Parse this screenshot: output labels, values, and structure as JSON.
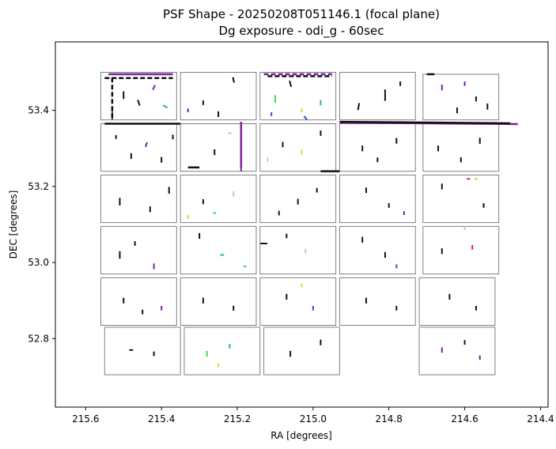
{
  "chart_data": {
    "type": "scatter",
    "title": "PSF Shape - 20250208T051146.1 (focal plane)",
    "subtitle": "Dg exposure - odi_g - 60sec",
    "xlabel": "RA [degrees]",
    "ylabel": "DEC [degrees]",
    "xlim": [
      215.68,
      214.38
    ],
    "ylim": [
      52.62,
      53.58
    ],
    "x_inverted": true,
    "grid": false,
    "x_ticks": [
      215.6,
      215.4,
      215.2,
      215.0,
      214.8,
      214.6,
      214.4
    ],
    "x_tick_labels": [
      "215.6",
      "215.4",
      "215.2",
      "215.0",
      "214.8",
      "214.6",
      "214.4"
    ],
    "y_ticks": [
      52.8,
      53.0,
      53.2,
      53.4
    ],
    "y_tick_labels": [
      "52.8",
      "53.0",
      "53.2",
      "53.4"
    ],
    "colors": {
      "ccd_outline": "#808080",
      "psf_default": "#111111",
      "psf_purple": "#7b1fa2",
      "psf_teal": "#1fb0b0",
      "psf_green": "#33dd55",
      "psf_blue": "#2255cc",
      "psf_yellow": "#e8d020",
      "psf_gray": "#c8c8c8",
      "psf_red": "#dd2222"
    },
    "ccds": [
      {
        "ra_left": 215.56,
        "ra_right": 215.36,
        "dec_bottom": 53.375,
        "dec_top": 53.5
      },
      {
        "ra_left": 215.35,
        "ra_right": 215.15,
        "dec_bottom": 53.375,
        "dec_top": 53.5
      },
      {
        "ra_left": 215.14,
        "ra_right": 214.94,
        "dec_bottom": 53.375,
        "dec_top": 53.5
      },
      {
        "ra_left": 214.93,
        "ra_right": 214.73,
        "dec_bottom": 53.375,
        "dec_top": 53.5
      },
      {
        "ra_left": 214.71,
        "ra_right": 214.51,
        "dec_bottom": 53.375,
        "dec_top": 53.495
      },
      {
        "ra_left": 215.56,
        "ra_right": 215.36,
        "dec_bottom": 53.24,
        "dec_top": 53.365
      },
      {
        "ra_left": 215.35,
        "ra_right": 215.15,
        "dec_bottom": 53.24,
        "dec_top": 53.365
      },
      {
        "ra_left": 215.14,
        "ra_right": 214.94,
        "dec_bottom": 53.24,
        "dec_top": 53.365
      },
      {
        "ra_left": 214.93,
        "ra_right": 214.73,
        "dec_bottom": 53.24,
        "dec_top": 53.365
      },
      {
        "ra_left": 214.71,
        "ra_right": 214.51,
        "dec_bottom": 53.24,
        "dec_top": 53.365
      },
      {
        "ra_left": 215.56,
        "ra_right": 215.36,
        "dec_bottom": 53.105,
        "dec_top": 53.23
      },
      {
        "ra_left": 215.35,
        "ra_right": 215.15,
        "dec_bottom": 53.105,
        "dec_top": 53.23
      },
      {
        "ra_left": 215.14,
        "ra_right": 214.94,
        "dec_bottom": 53.105,
        "dec_top": 53.23
      },
      {
        "ra_left": 214.93,
        "ra_right": 214.73,
        "dec_bottom": 53.105,
        "dec_top": 53.23
      },
      {
        "ra_left": 214.71,
        "ra_right": 214.51,
        "dec_bottom": 53.105,
        "dec_top": 53.23
      },
      {
        "ra_left": 215.56,
        "ra_right": 215.36,
        "dec_bottom": 52.97,
        "dec_top": 53.095
      },
      {
        "ra_left": 215.35,
        "ra_right": 215.15,
        "dec_bottom": 52.97,
        "dec_top": 53.095
      },
      {
        "ra_left": 215.14,
        "ra_right": 214.94,
        "dec_bottom": 52.97,
        "dec_top": 53.095
      },
      {
        "ra_left": 214.93,
        "ra_right": 214.73,
        "dec_bottom": 52.97,
        "dec_top": 53.095
      },
      {
        "ra_left": 214.71,
        "ra_right": 214.51,
        "dec_bottom": 52.97,
        "dec_top": 53.095
      },
      {
        "ra_left": 215.56,
        "ra_right": 215.36,
        "dec_bottom": 52.835,
        "dec_top": 52.96
      },
      {
        "ra_left": 215.35,
        "ra_right": 215.15,
        "dec_bottom": 52.835,
        "dec_top": 52.96
      },
      {
        "ra_left": 215.14,
        "ra_right": 214.94,
        "dec_bottom": 52.835,
        "dec_top": 52.96
      },
      {
        "ra_left": 214.93,
        "ra_right": 214.73,
        "dec_bottom": 52.835,
        "dec_top": 52.96
      },
      {
        "ra_left": 214.72,
        "ra_right": 214.52,
        "dec_bottom": 52.835,
        "dec_top": 52.96
      },
      {
        "ra_left": 215.55,
        "ra_right": 215.35,
        "dec_bottom": 52.705,
        "dec_top": 52.83
      },
      {
        "ra_left": 215.34,
        "ra_right": 215.14,
        "dec_bottom": 52.705,
        "dec_top": 52.83
      },
      {
        "ra_left": 215.13,
        "ra_right": 214.93,
        "dec_bottom": 52.705,
        "dec_top": 52.83
      },
      {
        "ra_left": 214.72,
        "ra_right": 214.52,
        "dec_bottom": 52.705,
        "dec_top": 52.83
      }
    ],
    "psf_sticks": [
      {
        "ra": 215.5,
        "dec": 53.44,
        "dra": 0.0,
        "ddec": 0.02,
        "color": "default"
      },
      {
        "ra": 215.46,
        "dec": 53.42,
        "dra": 0.005,
        "ddec": 0.015,
        "color": "default"
      },
      {
        "ra": 215.42,
        "dec": 53.46,
        "dra": -0.006,
        "ddec": 0.012,
        "color": "purple"
      },
      {
        "ra": 215.39,
        "dec": 53.41,
        "dra": 0.012,
        "ddec": 0.006,
        "color": "teal"
      },
      {
        "ra": 215.53,
        "dec": 53.39,
        "dra": 0.0,
        "ddec": 0.03,
        "color": "purple"
      },
      {
        "ra": 215.29,
        "dec": 53.42,
        "dra": 0.0,
        "ddec": 0.012,
        "color": "default"
      },
      {
        "ra": 215.25,
        "dec": 53.39,
        "dra": 0.0,
        "ddec": 0.015,
        "color": "default"
      },
      {
        "ra": 215.21,
        "dec": 53.48,
        "dra": 0.003,
        "ddec": 0.014,
        "color": "default"
      },
      {
        "ra": 215.33,
        "dec": 53.4,
        "dra": 0.0,
        "ddec": 0.01,
        "color": "purple"
      },
      {
        "ra": 215.1,
        "dec": 53.43,
        "dra": 0.0,
        "ddec": 0.02,
        "color": "green"
      },
      {
        "ra": 215.06,
        "dec": 53.47,
        "dra": 0.004,
        "ddec": 0.016,
        "color": "default"
      },
      {
        "ra": 215.02,
        "dec": 53.38,
        "dra": 0.008,
        "ddec": 0.01,
        "color": "blue"
      },
      {
        "ra": 214.98,
        "dec": 53.42,
        "dra": 0.0,
        "ddec": 0.014,
        "color": "teal"
      },
      {
        "ra": 215.11,
        "dec": 53.39,
        "dra": 0.0,
        "ddec": 0.01,
        "color": "blue"
      },
      {
        "ra": 215.03,
        "dec": 53.4,
        "dra": 0.0,
        "ddec": 0.01,
        "color": "yellow"
      },
      {
        "ra": 214.88,
        "dec": 53.41,
        "dra": -0.003,
        "ddec": 0.018,
        "color": "default"
      },
      {
        "ra": 214.81,
        "dec": 53.44,
        "dra": 0.0,
        "ddec": 0.03,
        "color": "default"
      },
      {
        "ra": 214.77,
        "dec": 53.47,
        "dra": 0.0,
        "ddec": 0.012,
        "color": "default"
      },
      {
        "ra": 214.66,
        "dec": 53.46,
        "dra": 0.0,
        "ddec": 0.015,
        "color": "purple"
      },
      {
        "ra": 214.62,
        "dec": 53.4,
        "dra": 0.0,
        "ddec": 0.015,
        "color": "default"
      },
      {
        "ra": 214.57,
        "dec": 53.43,
        "dra": 0.0,
        "ddec": 0.013,
        "color": "default"
      },
      {
        "ra": 214.6,
        "dec": 53.47,
        "dra": 0.0,
        "ddec": 0.012,
        "color": "purple"
      },
      {
        "ra": 214.54,
        "dec": 53.41,
        "dra": 0.0,
        "ddec": 0.016,
        "color": "default"
      },
      {
        "ra": 215.48,
        "dec": 53.28,
        "dra": 0.0,
        "ddec": 0.015,
        "color": "default"
      },
      {
        "ra": 215.44,
        "dec": 53.31,
        "dra": -0.004,
        "ddec": 0.012,
        "color": "purple"
      },
      {
        "ra": 215.4,
        "dec": 53.27,
        "dra": 0.0,
        "ddec": 0.015,
        "color": "default"
      },
      {
        "ra": 215.52,
        "dec": 53.33,
        "dra": 0.0,
        "ddec": 0.01,
        "color": "default"
      },
      {
        "ra": 215.37,
        "dec": 53.33,
        "dra": 0.0,
        "ddec": 0.012,
        "color": "default"
      },
      {
        "ra": 215.26,
        "dec": 53.29,
        "dra": 0.0,
        "ddec": 0.015,
        "color": "default"
      },
      {
        "ra": 215.19,
        "dec": 53.28,
        "dra": 0.0,
        "ddec": 0.08,
        "color": "purple"
      },
      {
        "ra": 215.22,
        "dec": 53.34,
        "dra": 0.01,
        "ddec": 0.0,
        "color": "gray"
      },
      {
        "ra": 215.08,
        "dec": 53.31,
        "dra": 0.0,
        "ddec": 0.014,
        "color": "default"
      },
      {
        "ra": 215.03,
        "dec": 53.29,
        "dra": 0.0,
        "ddec": 0.012,
        "color": "yellow"
      },
      {
        "ra": 214.98,
        "dec": 53.34,
        "dra": 0.0,
        "ddec": 0.014,
        "color": "default"
      },
      {
        "ra": 215.12,
        "dec": 53.27,
        "dra": 0.0,
        "ddec": 0.01,
        "color": "gray"
      },
      {
        "ra": 214.87,
        "dec": 53.3,
        "dra": 0.0,
        "ddec": 0.015,
        "color": "default"
      },
      {
        "ra": 214.83,
        "dec": 53.27,
        "dra": 0.0,
        "ddec": 0.012,
        "color": "default"
      },
      {
        "ra": 214.78,
        "dec": 53.32,
        "dra": 0.0,
        "ddec": 0.015,
        "color": "default"
      },
      {
        "ra": 214.67,
        "dec": 53.3,
        "dra": 0.0,
        "ddec": 0.015,
        "color": "default"
      },
      {
        "ra": 214.61,
        "dec": 53.27,
        "dra": 0.0,
        "ddec": 0.013,
        "color": "default"
      },
      {
        "ra": 214.56,
        "dec": 53.32,
        "dra": 0.0,
        "ddec": 0.016,
        "color": "default"
      },
      {
        "ra": 215.51,
        "dec": 53.16,
        "dra": 0.0,
        "ddec": 0.02,
        "color": "default"
      },
      {
        "ra": 215.43,
        "dec": 53.14,
        "dra": 0.0,
        "ddec": 0.015,
        "color": "default"
      },
      {
        "ra": 215.38,
        "dec": 53.19,
        "dra": 0.0,
        "ddec": 0.018,
        "color": "default"
      },
      {
        "ra": 215.29,
        "dec": 53.16,
        "dra": 0.0,
        "ddec": 0.013,
        "color": "default"
      },
      {
        "ra": 215.21,
        "dec": 53.18,
        "dra": 0.0,
        "ddec": 0.014,
        "color": "gray"
      },
      {
        "ra": 215.26,
        "dec": 53.13,
        "dra": 0.008,
        "ddec": 0.0,
        "color": "green"
      },
      {
        "ra": 215.33,
        "dec": 53.12,
        "dra": 0.0,
        "ddec": 0.01,
        "color": "yellow"
      },
      {
        "ra": 215.04,
        "dec": 53.16,
        "dra": 0.0,
        "ddec": 0.015,
        "color": "default"
      },
      {
        "ra": 215.09,
        "dec": 53.13,
        "dra": 0.0,
        "ddec": 0.012,
        "color": "default"
      },
      {
        "ra": 214.99,
        "dec": 53.19,
        "dra": 0.0,
        "ddec": 0.012,
        "color": "default"
      },
      {
        "ra": 214.86,
        "dec": 53.19,
        "dra": 0.0,
        "ddec": 0.014,
        "color": "default"
      },
      {
        "ra": 214.8,
        "dec": 53.15,
        "dra": 0.0,
        "ddec": 0.012,
        "color": "default"
      },
      {
        "ra": 214.76,
        "dec": 53.13,
        "dra": 0.0,
        "ddec": 0.01,
        "color": "purple"
      },
      {
        "ra": 214.66,
        "dec": 53.2,
        "dra": 0.0,
        "ddec": 0.015,
        "color": "default"
      },
      {
        "ra": 214.59,
        "dec": 53.22,
        "dra": 0.008,
        "ddec": 0.0,
        "color": "red"
      },
      {
        "ra": 214.57,
        "dec": 53.22,
        "dra": 0.008,
        "ddec": 0.0,
        "color": "yellow"
      },
      {
        "ra": 214.55,
        "dec": 53.15,
        "dra": 0.0,
        "ddec": 0.012,
        "color": "default"
      },
      {
        "ra": 215.51,
        "dec": 53.02,
        "dra": 0.0,
        "ddec": 0.02,
        "color": "default"
      },
      {
        "ra": 215.42,
        "dec": 52.99,
        "dra": 0.0,
        "ddec": 0.015,
        "color": "purple"
      },
      {
        "ra": 215.47,
        "dec": 53.05,
        "dra": 0.0,
        "ddec": 0.012,
        "color": "default"
      },
      {
        "ra": 215.3,
        "dec": 53.07,
        "dra": 0.0,
        "ddec": 0.015,
        "color": "default"
      },
      {
        "ra": 215.24,
        "dec": 53.02,
        "dra": 0.01,
        "ddec": 0.0,
        "color": "teal"
      },
      {
        "ra": 215.18,
        "dec": 52.99,
        "dra": 0.008,
        "ddec": 0.0,
        "color": "green"
      },
      {
        "ra": 215.13,
        "dec": 53.05,
        "dra": 0.018,
        "ddec": 0.0,
        "color": "default"
      },
      {
        "ra": 215.02,
        "dec": 53.03,
        "dra": 0.0,
        "ddec": 0.012,
        "color": "gray"
      },
      {
        "ra": 215.07,
        "dec": 53.07,
        "dra": 0.0,
        "ddec": 0.012,
        "color": "default"
      },
      {
        "ra": 214.87,
        "dec": 53.06,
        "dra": 0.0,
        "ddec": 0.015,
        "color": "default"
      },
      {
        "ra": 214.81,
        "dec": 53.02,
        "dra": 0.0,
        "ddec": 0.015,
        "color": "default"
      },
      {
        "ra": 214.78,
        "dec": 52.99,
        "dra": 0.0,
        "ddec": 0.01,
        "color": "blue"
      },
      {
        "ra": 214.66,
        "dec": 53.03,
        "dra": 0.0,
        "ddec": 0.015,
        "color": "default"
      },
      {
        "ra": 214.58,
        "dec": 53.04,
        "dra": 0.0,
        "ddec": 0.012,
        "color": "red"
      },
      {
        "ra": 214.6,
        "dec": 53.09,
        "dra": 0.0,
        "ddec": 0.01,
        "color": "gray"
      },
      {
        "ra": 215.5,
        "dec": 52.9,
        "dra": 0.0,
        "ddec": 0.015,
        "color": "default"
      },
      {
        "ra": 215.45,
        "dec": 52.87,
        "dra": 0.0,
        "ddec": 0.012,
        "color": "default"
      },
      {
        "ra": 215.4,
        "dec": 52.88,
        "dra": 0.0,
        "ddec": 0.012,
        "color": "purple"
      },
      {
        "ra": 215.29,
        "dec": 52.9,
        "dra": 0.0,
        "ddec": 0.015,
        "color": "default"
      },
      {
        "ra": 215.21,
        "dec": 52.88,
        "dra": 0.0,
        "ddec": 0.013,
        "color": "default"
      },
      {
        "ra": 215.07,
        "dec": 52.91,
        "dra": 0.0,
        "ddec": 0.015,
        "color": "default"
      },
      {
        "ra": 215.0,
        "dec": 52.88,
        "dra": 0.0,
        "ddec": 0.012,
        "color": "blue"
      },
      {
        "ra": 215.03,
        "dec": 52.94,
        "dra": 0.0,
        "ddec": 0.01,
        "color": "yellow"
      },
      {
        "ra": 214.86,
        "dec": 52.9,
        "dra": 0.0,
        "ddec": 0.015,
        "color": "default"
      },
      {
        "ra": 214.78,
        "dec": 52.88,
        "dra": 0.0,
        "ddec": 0.012,
        "color": "default"
      },
      {
        "ra": 214.64,
        "dec": 52.91,
        "dra": 0.0,
        "ddec": 0.015,
        "color": "default"
      },
      {
        "ra": 214.57,
        "dec": 52.88,
        "dra": 0.0,
        "ddec": 0.012,
        "color": "default"
      },
      {
        "ra": 215.48,
        "dec": 52.77,
        "dra": 0.01,
        "ddec": 0.0,
        "color": "default"
      },
      {
        "ra": 215.42,
        "dec": 52.76,
        "dra": 0.0,
        "ddec": 0.012,
        "color": "default"
      },
      {
        "ra": 215.28,
        "dec": 52.76,
        "dra": 0.0,
        "ddec": 0.015,
        "color": "green"
      },
      {
        "ra": 215.22,
        "dec": 52.78,
        "dra": 0.0,
        "ddec": 0.012,
        "color": "teal"
      },
      {
        "ra": 215.25,
        "dec": 52.73,
        "dra": 0.0,
        "ddec": 0.01,
        "color": "yellow"
      },
      {
        "ra": 215.06,
        "dec": 52.76,
        "dra": 0.0,
        "ddec": 0.015,
        "color": "default"
      },
      {
        "ra": 214.98,
        "dec": 52.79,
        "dra": 0.0,
        "ddec": 0.015,
        "color": "default"
      },
      {
        "ra": 214.66,
        "dec": 52.77,
        "dra": 0.0,
        "ddec": 0.014,
        "color": "purple"
      },
      {
        "ra": 214.6,
        "dec": 52.79,
        "dra": 0.0,
        "ddec": 0.012,
        "color": "default"
      },
      {
        "ra": 214.56,
        "dec": 52.75,
        "dra": 0.0,
        "ddec": 0.012,
        "color": "purple"
      }
    ],
    "psf_lines": [
      {
        "ra1": 215.55,
        "dec1": 53.485,
        "ra2": 215.37,
        "dec2": 53.485,
        "color": "default",
        "dash": true
      },
      {
        "ra1": 215.54,
        "dec1": 53.495,
        "ra2": 215.37,
        "dec2": 53.495,
        "color": "purple",
        "dash": false
      },
      {
        "ra1": 215.53,
        "dec1": 53.38,
        "ra2": 215.53,
        "dec2": 53.49,
        "color": "default",
        "dash": true
      },
      {
        "ra1": 215.55,
        "dec1": 53.365,
        "ra2": 215.35,
        "dec2": 53.365,
        "color": "default",
        "dash": false
      },
      {
        "ra1": 214.93,
        "dec1": 53.368,
        "ra2": 214.46,
        "dec2": 53.364,
        "color": "purple",
        "dash": false
      },
      {
        "ra1": 214.93,
        "dec1": 53.37,
        "ra2": 214.48,
        "dec2": 53.366,
        "color": "default",
        "dash": false
      },
      {
        "ra1": 215.13,
        "dec1": 53.495,
        "ra2": 214.95,
        "dec2": 53.495,
        "color": "purple",
        "dash": true
      },
      {
        "ra1": 215.12,
        "dec1": 53.49,
        "ra2": 214.95,
        "dec2": 53.49,
        "color": "default",
        "dash": true
      },
      {
        "ra1": 215.19,
        "dec1": 53.25,
        "ra2": 215.19,
        "dec2": 53.37,
        "color": "purple",
        "dash": false
      },
      {
        "ra1": 215.33,
        "dec1": 53.25,
        "ra2": 215.3,
        "dec2": 53.25,
        "color": "default",
        "dash": false
      },
      {
        "ra1": 214.98,
        "dec1": 53.24,
        "ra2": 214.93,
        "dec2": 53.24,
        "color": "default",
        "dash": false
      },
      {
        "ra1": 214.7,
        "dec1": 53.495,
        "ra2": 214.68,
        "dec2": 53.495,
        "color": "default",
        "dash": false
      }
    ]
  }
}
